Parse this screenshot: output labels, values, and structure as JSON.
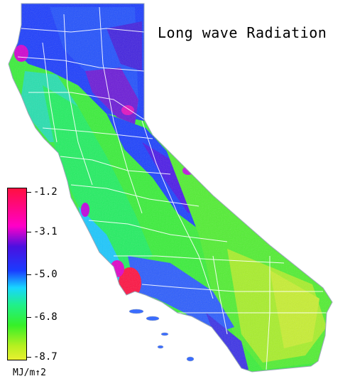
{
  "map": {
    "title": "Long wave Radiation",
    "region": "California",
    "legend": {
      "units": "MJ/m↑2",
      "ticks": [
        "-1.2",
        "-3.1",
        "-5.0",
        "-6.8",
        "-8.7"
      ],
      "colors": {
        "high": "#ff1040",
        "magenta": "#ff00c8",
        "purple": "#4a10e0",
        "blue": "#1a3cff",
        "cyan": "#18d6ff",
        "green": "#36f028",
        "low": "#e8f030"
      }
    }
  }
}
